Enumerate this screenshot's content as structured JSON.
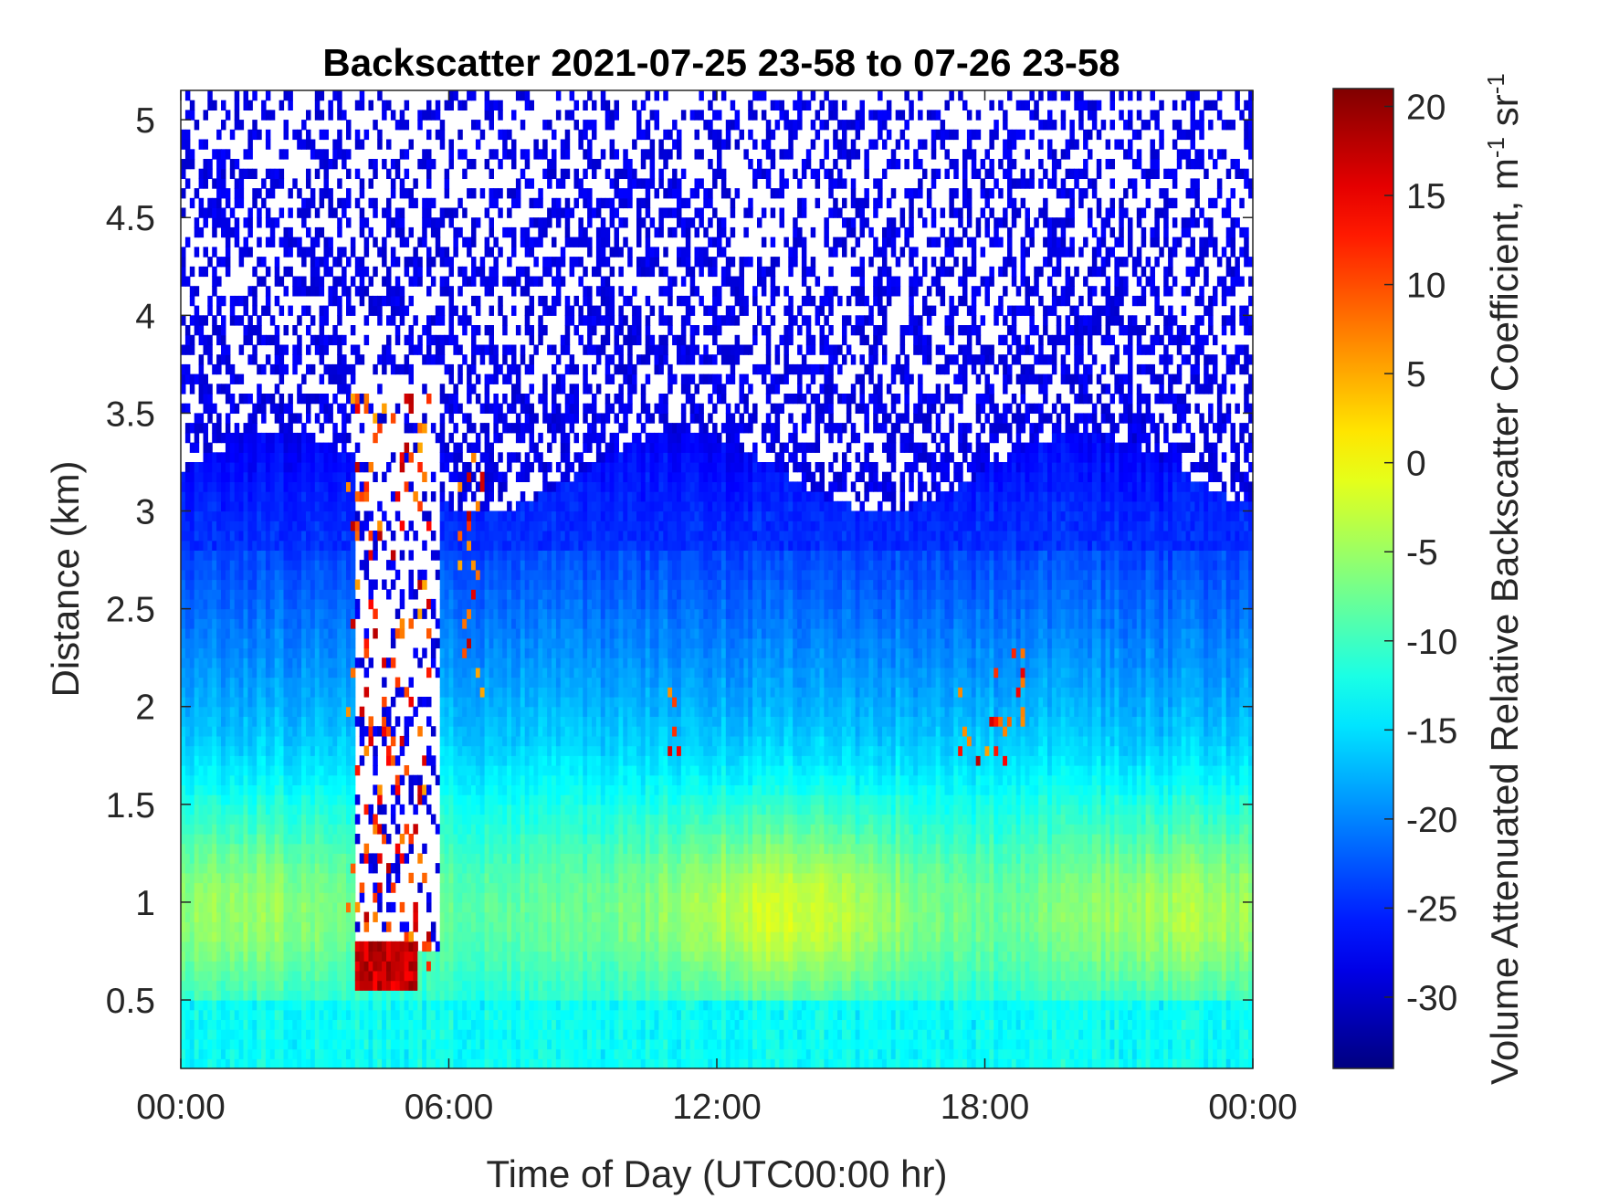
{
  "chart_data": {
    "type": "heatmap",
    "title": "Backscatter 2021-07-25 23-58 to 07-26 23-58",
    "xlabel": "Time of Day (UTC00:00 hr)",
    "ylabel": "Distance (km)",
    "colorbar_label": "Volume Attenuated Relative Backscatter Coefficient, m",
    "colorbar_label_sup1": "-1",
    "colorbar_label_mid": " sr",
    "colorbar_label_sup2": "-1",
    "colormap": "jet",
    "x_ticks": [
      {
        "value": 0,
        "label": "00:00"
      },
      {
        "value": 6,
        "label": "06:00"
      },
      {
        "value": 12,
        "label": "12:00"
      },
      {
        "value": 18,
        "label": "18:00"
      },
      {
        "value": 24,
        "label": "00:00"
      }
    ],
    "y_ticks": [
      {
        "value": 0.5,
        "label": "0.5"
      },
      {
        "value": 1,
        "label": "1"
      },
      {
        "value": 1.5,
        "label": "1.5"
      },
      {
        "value": 2,
        "label": "2"
      },
      {
        "value": 2.5,
        "label": "2.5"
      },
      {
        "value": 3,
        "label": "3"
      },
      {
        "value": 3.5,
        "label": "3.5"
      },
      {
        "value": 4,
        "label": "4"
      },
      {
        "value": 4.5,
        "label": "4.5"
      },
      {
        "value": 5,
        "label": "5"
      }
    ],
    "colorbar_ticks": [
      {
        "value": 20,
        "label": "20"
      },
      {
        "value": 15,
        "label": "15"
      },
      {
        "value": 10,
        "label": "10"
      },
      {
        "value": 5,
        "label": "5"
      },
      {
        "value": 0,
        "label": "0"
      },
      {
        "value": -5,
        "label": "-5"
      },
      {
        "value": -10,
        "label": "-10"
      },
      {
        "value": -15,
        "label": "-15"
      },
      {
        "value": -20,
        "label": "-20"
      },
      {
        "value": -25,
        "label": "-25"
      },
      {
        "value": -30,
        "label": "-30"
      }
    ],
    "xlim": [
      0,
      24
    ],
    "ylim": [
      0.15,
      5.15
    ],
    "clim": [
      -34,
      21
    ],
    "cloud_events": [
      {
        "start_hr": 3.7,
        "end_hr": 5.6,
        "base_km": 0.55,
        "top_km": 3.6
      },
      {
        "start_hr": 6.2,
        "end_hr": 6.8,
        "base_km": 1.9,
        "top_km": 3.3
      },
      {
        "start_hr": 10.9,
        "end_hr": 11.4,
        "base_km": 1.7,
        "top_km": 2.1
      },
      {
        "start_hr": 17.4,
        "end_hr": 19.0,
        "base_km": 1.7,
        "top_km": 2.3
      }
    ]
  }
}
